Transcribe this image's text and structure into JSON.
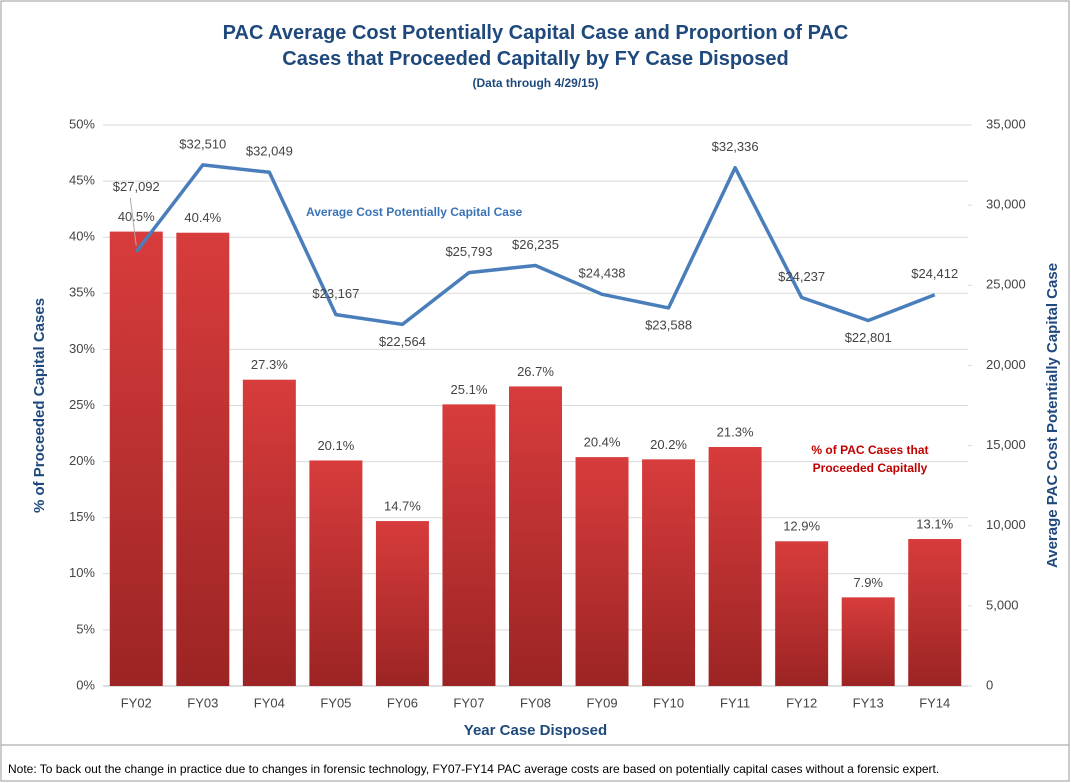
{
  "chart_data": {
    "type": "bar-line",
    "title": "PAC Average Cost Potentially Capital Case and Proportion of PAC Cases that Proceeded Capitally by FY Case Disposed",
    "subtitle": "(Data through 4/29/15)",
    "x_label": "Year Case Disposed",
    "y_label": "% of Proceeded Capital Cases",
    "y2_label": "Average PAC  Cost Potentially Capital Case",
    "note": "Note: To back out the change in practice due to changes in forensic technology, FY07-FY14 PAC average costs are based on potentially capital cases without a forensic expert.",
    "categories": [
      "FY02",
      "FY03",
      "FY04",
      "FY05",
      "FY06",
      "FY07",
      "FY08",
      "FY09",
      "FY10",
      "FY11",
      "FY12",
      "FY13",
      "FY14"
    ],
    "series": [
      {
        "name": "% of PAC Cases that Proceeded Capitally",
        "type": "bar",
        "color": "#c93131",
        "values": [
          40.5,
          40.4,
          27.3,
          20.1,
          14.7,
          25.1,
          26.7,
          20.4,
          20.2,
          21.3,
          12.9,
          7.9,
          13.1
        ],
        "value_labels": [
          "40.5%",
          "40.4%",
          "27.3%",
          "20.1%",
          "14.7%",
          "25.1%",
          "26.7%",
          "20.4%",
          "20.2%",
          "21.3%",
          "12.9%",
          "7.9%",
          "13.1%"
        ]
      },
      {
        "name": "Average Cost Potentially Capital Case",
        "type": "line",
        "axis": "y2",
        "color": "#4a7ebb",
        "values": [
          27092,
          32510,
          32049,
          23167,
          22564,
          25793,
          26235,
          24438,
          23588,
          32336,
          24237,
          22801,
          24412
        ],
        "value_labels": [
          "$27,092",
          "$32,510",
          "$32,049",
          "$23,167",
          "$22,564",
          "$25,793",
          "$26,235",
          "$24,438",
          "$23,588",
          "$32,336",
          "$24,237",
          "$22,801",
          "$24,412"
        ]
      }
    ],
    "ylim": [
      0,
      50
    ],
    "yticks": [
      {
        "value": 0,
        "label": "0%"
      },
      {
        "value": 5,
        "label": "5%"
      },
      {
        "value": 10,
        "label": "10%"
      },
      {
        "value": 15,
        "label": "15%"
      },
      {
        "value": 20,
        "label": "20%"
      },
      {
        "value": 25,
        "label": "25%"
      },
      {
        "value": 30,
        "label": "30%"
      },
      {
        "value": 35,
        "label": "35%"
      },
      {
        "value": 40,
        "label": "40%"
      },
      {
        "value": 45,
        "label": "45%"
      },
      {
        "value": 50,
        "label": "50%"
      }
    ],
    "y2lim": [
      0,
      35000
    ],
    "y2ticks": [
      0,
      {
        "value": 5000,
        "label": "5,000"
      },
      {
        "value": 10000,
        "label": "10,000"
      },
      {
        "value": 15000,
        "label": "15,000"
      },
      {
        "value": 20000,
        "label": "20,000"
      },
      {
        "value": 25000,
        "label": "25,000"
      },
      {
        "value": 30000,
        "label": "30,000"
      },
      {
        "value": 35000,
        "label": "35,000"
      }
    ],
    "grid": true
  }
}
